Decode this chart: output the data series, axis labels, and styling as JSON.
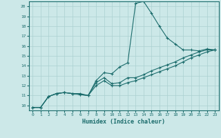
{
  "xlabel": "Humidex (Indice chaleur)",
  "ylabel": "",
  "background_color": "#cce8e8",
  "grid_color": "#aad0d0",
  "line_color": "#1a6b6b",
  "x_ticks": [
    0,
    1,
    2,
    3,
    4,
    5,
    6,
    7,
    8,
    9,
    10,
    11,
    12,
    13,
    14,
    15,
    16,
    17,
    18,
    19,
    20,
    21,
    22,
    23
  ],
  "y_ticks": [
    10,
    11,
    12,
    13,
    14,
    15,
    16,
    17,
    18,
    19,
    20
  ],
  "ylim": [
    9.5,
    20.5
  ],
  "xlim": [
    -0.5,
    23.5
  ],
  "line1_x": [
    0,
    1,
    2,
    3,
    4,
    5,
    6,
    7,
    8,
    9,
    10,
    11,
    12,
    13,
    14,
    15,
    16,
    17,
    18,
    19,
    20,
    21,
    22,
    23
  ],
  "line1_y": [
    9.8,
    9.8,
    10.9,
    11.2,
    11.3,
    11.2,
    11.2,
    11.0,
    12.5,
    13.3,
    13.2,
    13.9,
    14.3,
    20.3,
    20.5,
    19.3,
    18.0,
    16.8,
    16.2,
    15.6,
    15.6,
    15.5,
    15.7,
    15.6
  ],
  "line2_x": [
    0,
    1,
    2,
    3,
    4,
    5,
    6,
    7,
    8,
    9,
    10,
    11,
    12,
    13,
    14,
    15,
    16,
    17,
    18,
    19,
    20,
    21,
    22,
    23
  ],
  "line2_y": [
    9.8,
    9.8,
    10.9,
    11.2,
    11.3,
    11.2,
    11.1,
    11.0,
    12.3,
    12.8,
    12.2,
    12.3,
    12.8,
    12.8,
    13.1,
    13.5,
    13.8,
    14.1,
    14.4,
    14.8,
    15.1,
    15.4,
    15.6,
    15.6
  ],
  "line3_x": [
    0,
    1,
    2,
    3,
    4,
    5,
    6,
    7,
    8,
    9,
    10,
    11,
    12,
    13,
    14,
    15,
    16,
    17,
    18,
    19,
    20,
    21,
    22,
    23
  ],
  "line3_y": [
    9.8,
    9.8,
    10.9,
    11.2,
    11.3,
    11.2,
    11.1,
    11.0,
    12.0,
    12.5,
    12.0,
    12.0,
    12.3,
    12.5,
    12.8,
    13.1,
    13.4,
    13.7,
    14.0,
    14.4,
    14.8,
    15.1,
    15.4,
    15.6
  ]
}
